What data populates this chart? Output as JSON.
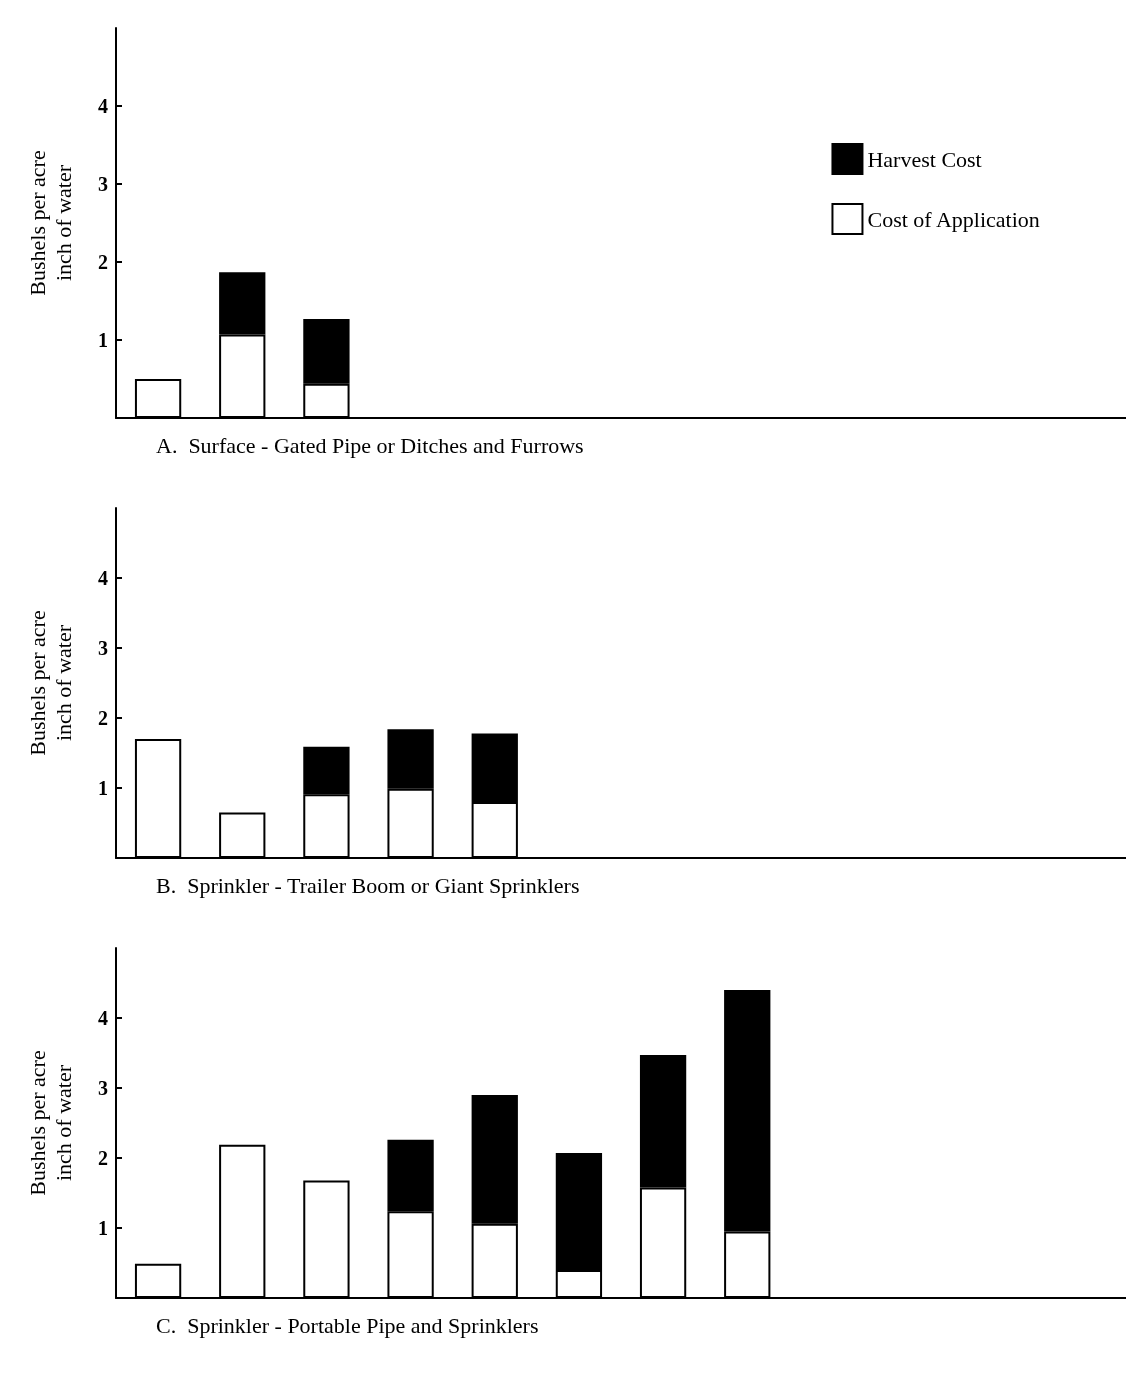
{
  "chart_data": [
    {
      "type": "bar",
      "stacked": true,
      "xlabel": "A.  Surface - Gated Pipe or Ditches and Furrows",
      "ylabel": "Bushels per acre\ninch of water",
      "categories": [
        null,
        null,
        null,
        null,
        null,
        null,
        null,
        null,
        null,
        null,
        null,
        null
      ],
      "series": [
        {
          "name": "Cost of Application",
          "color": "#ffffff",
          "values": [
            0.5,
            1.07,
            0.44,
            null,
            null,
            null,
            null,
            null,
            null,
            null,
            null,
            null
          ]
        },
        {
          "name": "Harvest Cost",
          "color": "#000000",
          "values": [
            null,
            0.8,
            0.83,
            null,
            null,
            null,
            null,
            null,
            null,
            null,
            null,
            null
          ]
        }
      ],
      "ylim": [
        0,
        5
      ],
      "yticks": [
        1,
        2,
        3,
        4
      ],
      "grid": false,
      "legend": "top right",
      "tick_labels": "y"
    },
    {
      "type": "bar",
      "stacked": true,
      "xlabel": "B.  Sprinkler - Trailer Boom or Giant Sprinklers",
      "ylabel": "Bushels per acre\ninch of water",
      "categories": [
        null,
        null,
        null,
        null,
        null,
        null,
        null,
        null,
        null,
        null,
        null,
        null
      ],
      "series": [
        {
          "color": "#ffffff",
          "values": [
            1.7,
            0.65,
            0.91,
            0.99,
            0.8,
            null,
            null,
            null,
            null,
            null,
            null,
            null
          ]
        },
        {
          "color": "#000000",
          "values": [
            null,
            null,
            0.68,
            0.85,
            0.98,
            null,
            null,
            null,
            null,
            null,
            null,
            null
          ]
        }
      ],
      "ylim": [
        0,
        5
      ],
      "yticks": [
        1,
        2,
        3,
        4
      ],
      "grid": false,
      "legend": false,
      "tick_labels": "y"
    },
    {
      "type": "bar",
      "stacked": true,
      "xlabel": "C.  Sprinkler - Portable Pipe and Sprinklers",
      "ylabel": "Bushels per acre\ninch of water",
      "categories": [
        null,
        null,
        null,
        null,
        null,
        null,
        null,
        null,
        null,
        null,
        null,
        null
      ],
      "series": [
        {
          "color": "#ffffff",
          "values": [
            0.49,
            2.19,
            1.68,
            1.24,
            1.06,
            0.4,
            1.58,
            0.95,
            null,
            null,
            null,
            null
          ]
        },
        {
          "color": "#000000",
          "values": [
            null,
            null,
            null,
            1.02,
            1.84,
            1.67,
            1.89,
            3.45,
            null,
            null,
            null,
            null
          ]
        }
      ],
      "ylim": [
        0,
        5
      ],
      "yticks": [
        1,
        2,
        3,
        4
      ],
      "grid": false,
      "legend": false,
      "tick_labels": "y"
    }
  ]
}
